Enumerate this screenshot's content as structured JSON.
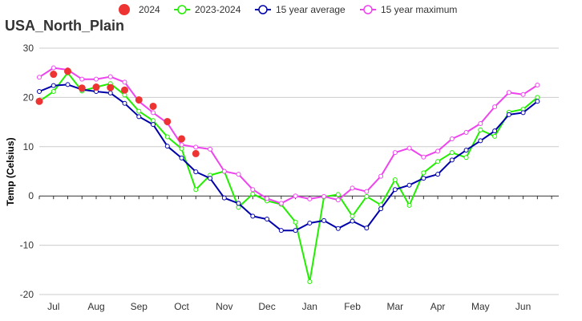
{
  "chart_data": {
    "type": "line",
    "title": "USA_North_Plain",
    "xlabel": "",
    "ylabel": "Temp (Celsius)",
    "ylim": [
      -20,
      30
    ],
    "yticks": [
      -20,
      -10,
      0,
      10,
      20,
      30
    ],
    "grid": "horizontal",
    "legend_position": "top",
    "x_axis_at_zero": true,
    "x_range": [
      0,
      36.5
    ],
    "month_labels": [
      {
        "label": "Jul",
        "x": 1
      },
      {
        "label": "Aug",
        "x": 4
      },
      {
        "label": "Sep",
        "x": 7
      },
      {
        "label": "Oct",
        "x": 10
      },
      {
        "label": "Nov",
        "x": 13
      },
      {
        "label": "Dec",
        "x": 16
      },
      {
        "label": "Jan",
        "x": 19
      },
      {
        "label": "Feb",
        "x": 22
      },
      {
        "label": "Mar",
        "x": 25
      },
      {
        "label": "Apr",
        "x": 28
      },
      {
        "label": "May",
        "x": 31
      },
      {
        "label": "Jun",
        "x": 34
      }
    ],
    "series": [
      {
        "name": "2024",
        "style": "dots",
        "color": "#ee3333",
        "points": [
          [
            0,
            19.2
          ],
          [
            1,
            24.7
          ],
          [
            2,
            25.3
          ],
          [
            3,
            21.9
          ],
          [
            4,
            22.1
          ],
          [
            5,
            22.0
          ],
          [
            6,
            21.5
          ],
          [
            7,
            19.5
          ],
          [
            8,
            18.2
          ],
          [
            9,
            15.1
          ],
          [
            10,
            11.6
          ],
          [
            11,
            8.6
          ]
        ]
      },
      {
        "name": "2023-2024",
        "style": "line",
        "color": "#22ee00",
        "points": [
          [
            0,
            19.2
          ],
          [
            1,
            21.2
          ],
          [
            2,
            25.0
          ],
          [
            3,
            21.3
          ],
          [
            4,
            22.1
          ],
          [
            5,
            22.8
          ],
          [
            6,
            20.5
          ],
          [
            7,
            17.2
          ],
          [
            8,
            15.3
          ],
          [
            9,
            12.0
          ],
          [
            10,
            9.6
          ],
          [
            11,
            1.3
          ],
          [
            12,
            4.2
          ],
          [
            13,
            5.0
          ],
          [
            14,
            -2.3
          ],
          [
            15,
            0.4
          ],
          [
            16,
            -1.0
          ],
          [
            17,
            -1.7
          ],
          [
            18,
            -5.3
          ],
          [
            19,
            -17.4
          ],
          [
            20,
            -0.2
          ],
          [
            21,
            0.3
          ],
          [
            22,
            -4.1
          ],
          [
            23,
            -0.1
          ],
          [
            24,
            -1.8
          ],
          [
            25,
            3.3
          ],
          [
            26,
            -1.9
          ],
          [
            27,
            4.7
          ],
          [
            28,
            7.0
          ],
          [
            29,
            8.8
          ],
          [
            30,
            7.8
          ],
          [
            31,
            13.4
          ],
          [
            32,
            12.1
          ],
          [
            33,
            17.0
          ],
          [
            34,
            17.6
          ],
          [
            35,
            20.0
          ]
        ]
      },
      {
        "name": "15 year average",
        "style": "line",
        "color": "#0000aa",
        "points": [
          [
            0,
            21.2
          ],
          [
            1,
            22.4
          ],
          [
            2,
            22.6
          ],
          [
            3,
            21.6
          ],
          [
            4,
            21.2
          ],
          [
            5,
            20.9
          ],
          [
            6,
            18.8
          ],
          [
            7,
            16.1
          ],
          [
            8,
            14.5
          ],
          [
            9,
            10.1
          ],
          [
            10,
            7.7
          ],
          [
            11,
            4.9
          ],
          [
            12,
            3.6
          ],
          [
            13,
            -0.4
          ],
          [
            14,
            -1.5
          ],
          [
            15,
            -4.1
          ],
          [
            16,
            -4.7
          ],
          [
            17,
            -7.0
          ],
          [
            18,
            -7.0
          ],
          [
            19,
            -5.5
          ],
          [
            20,
            -5.0
          ],
          [
            21,
            -6.6
          ],
          [
            22,
            -5.1
          ],
          [
            23,
            -6.5
          ],
          [
            24,
            -2.6
          ],
          [
            25,
            1.3
          ],
          [
            26,
            2.2
          ],
          [
            27,
            3.6
          ],
          [
            28,
            4.4
          ],
          [
            29,
            7.3
          ],
          [
            30,
            9.3
          ],
          [
            31,
            11.2
          ],
          [
            32,
            13.2
          ],
          [
            33,
            16.5
          ],
          [
            34,
            16.9
          ],
          [
            35,
            19.2
          ]
        ]
      },
      {
        "name": "15 year maximum",
        "style": "line",
        "color": "#ee44ee",
        "points": [
          [
            0,
            24.1
          ],
          [
            1,
            26.0
          ],
          [
            2,
            25.6
          ],
          [
            3,
            23.7
          ],
          [
            4,
            23.7
          ],
          [
            5,
            24.2
          ],
          [
            6,
            23.1
          ],
          [
            7,
            19.2
          ],
          [
            8,
            16.9
          ],
          [
            9,
            14.8
          ],
          [
            10,
            10.4
          ],
          [
            11,
            9.9
          ],
          [
            12,
            9.5
          ],
          [
            13,
            5.0
          ],
          [
            14,
            4.4
          ],
          [
            15,
            1.3
          ],
          [
            16,
            -0.5
          ],
          [
            17,
            -1.5
          ],
          [
            18,
            0.0
          ],
          [
            19,
            -0.6
          ],
          [
            20,
            -0.1
          ],
          [
            21,
            -0.8
          ],
          [
            22,
            1.6
          ],
          [
            23,
            0.9
          ],
          [
            24,
            4.0
          ],
          [
            25,
            8.8
          ],
          [
            26,
            9.7
          ],
          [
            27,
            7.9
          ],
          [
            28,
            9.1
          ],
          [
            29,
            11.6
          ],
          [
            30,
            12.9
          ],
          [
            31,
            14.7
          ],
          [
            32,
            18.1
          ],
          [
            33,
            21.0
          ],
          [
            34,
            20.6
          ],
          [
            35,
            22.5
          ]
        ]
      }
    ]
  }
}
